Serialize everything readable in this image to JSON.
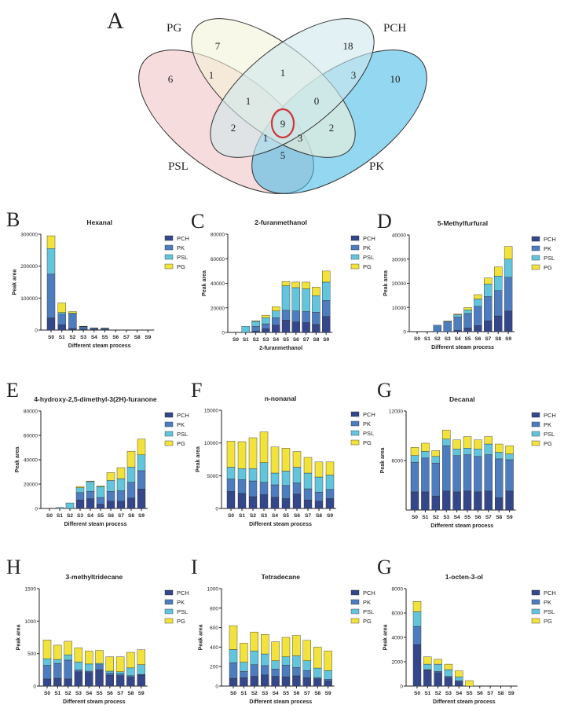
{
  "venn": {
    "panel_label": "A",
    "sets": [
      {
        "name": "PG",
        "color": "#f3f4d8"
      },
      {
        "name": "PCH",
        "color": "#cfe7ec"
      },
      {
        "name": "PSL",
        "color": "#f2c4c6"
      },
      {
        "name": "PK",
        "color": "#4dbde8"
      }
    ],
    "regions": [
      {
        "sets": "PG only",
        "count": "7"
      },
      {
        "sets": "PCH only",
        "count": "18"
      },
      {
        "sets": "PSL only",
        "count": "6"
      },
      {
        "sets": "PG+PSL",
        "count": "1"
      },
      {
        "sets": "PG+PCH",
        "count": "1"
      },
      {
        "sets": "PCH+PK",
        "count": "3"
      },
      {
        "sets": "PK only",
        "count": "10"
      },
      {
        "sets": "PG+PCH+PSL",
        "count": "1"
      },
      {
        "sets": "PG+PCH+PK",
        "count": "0"
      },
      {
        "sets": "PCH+PSL",
        "count": "2"
      },
      {
        "sets": "PG+PCH+PSL+PK",
        "count": "9"
      },
      {
        "sets": "PG+PK",
        "count": "2"
      },
      {
        "sets": "PG+PSL+PK",
        "count": "1"
      },
      {
        "sets": "PCH+PSL+PK",
        "count": "3"
      },
      {
        "sets": "PSL+PK",
        "count": "5"
      }
    ],
    "highlight_color": "#d0343a"
  },
  "chart_data": [
    {
      "panel": "B",
      "type": "bar",
      "stacked": true,
      "title": "Hexanal",
      "xlabel": "Different steam process",
      "ylabel": "Peak area",
      "ylim": [
        0,
        300000
      ],
      "yticks": [
        0,
        100000,
        200000,
        300000
      ],
      "categories": [
        "S0",
        "S1",
        "S2",
        "S3",
        "S4",
        "S5",
        "S6",
        "S7",
        "S8",
        "S9"
      ],
      "series": [
        {
          "name": "PCH",
          "values": [
            38000,
            17000,
            5000,
            3000,
            2000,
            2000,
            0,
            0,
            0,
            0
          ]
        },
        {
          "name": "PK",
          "values": [
            137000,
            33000,
            45000,
            7000,
            4000,
            3500,
            0,
            0,
            0,
            0
          ]
        },
        {
          "name": "PSL",
          "values": [
            80000,
            5000,
            3000,
            1000,
            500,
            500,
            0,
            0,
            0,
            0
          ]
        },
        {
          "name": "PG",
          "values": [
            40000,
            30000,
            5000,
            1000,
            500,
            500,
            0,
            0,
            0,
            0
          ]
        }
      ]
    },
    {
      "panel": "C",
      "type": "bar",
      "stacked": true,
      "title": "2-furanmethanol",
      "xlabel": "2-furanmethanol",
      "ylabel": "Peak area",
      "ylim": [
        0,
        80000
      ],
      "yticks": [
        0,
        20000,
        40000,
        60000,
        80000
      ],
      "categories": [
        "S0",
        "S1",
        "S2",
        "S3",
        "S4",
        "S5",
        "S6",
        "S7",
        "S8",
        "S9"
      ],
      "series": [
        {
          "name": "PCH",
          "values": [
            0,
            0,
            1000,
            3000,
            6000,
            10000,
            8500,
            8000,
            6500,
            13000
          ]
        },
        {
          "name": "PK",
          "values": [
            0,
            0,
            4000,
            4000,
            6000,
            8000,
            9000,
            9000,
            10000,
            13000
          ]
        },
        {
          "name": "PSL",
          "values": [
            0,
            5000,
            4000,
            5000,
            5500,
            20000,
            19000,
            18500,
            13500,
            15000
          ]
        },
        {
          "name": "PG",
          "values": [
            0,
            0,
            500,
            2000,
            3500,
            3500,
            4500,
            5500,
            7000,
            9000
          ]
        }
      ]
    },
    {
      "panel": "D",
      "type": "bar",
      "stacked": true,
      "title": "5-Methylfurfural",
      "xlabel": "Different steam process",
      "ylabel": "Peak area",
      "ylim": [
        0,
        40000
      ],
      "yticks": [
        0,
        10000,
        20000,
        30000,
        40000
      ],
      "categories": [
        "S0",
        "S1",
        "S2",
        "S3",
        "S4",
        "S5",
        "S6",
        "S7",
        "S8",
        "S9"
      ],
      "series": [
        {
          "name": "PCH",
          "values": [
            0,
            0,
            0,
            0,
            500,
            1500,
            2500,
            4500,
            6500,
            8500
          ]
        },
        {
          "name": "PK",
          "values": [
            0,
            0,
            2700,
            4200,
            5500,
            6000,
            8000,
            10000,
            10500,
            14000
          ]
        },
        {
          "name": "PSL",
          "values": [
            0,
            0,
            0,
            0,
            1000,
            1500,
            3000,
            5200,
            6000,
            7500
          ]
        },
        {
          "name": "PG",
          "values": [
            0,
            0,
            0,
            200,
            300,
            1000,
            1800,
            2500,
            3800,
            5200
          ]
        }
      ]
    },
    {
      "panel": "E",
      "type": "bar",
      "stacked": true,
      "title": "4-hydroxy-2,5-dimethyl-3(2H)-furanone",
      "xlabel": "Different steam process",
      "ylabel": "Peak area",
      "ylim": [
        0,
        80000
      ],
      "yticks": [
        0,
        20000,
        40000,
        60000,
        80000
      ],
      "categories": [
        "S0",
        "S1",
        "S2",
        "S3",
        "S4",
        "S5",
        "S6",
        "S7",
        "S8",
        "S9"
      ],
      "series": [
        {
          "name": "PCH",
          "values": [
            0,
            0,
            0,
            7000,
            8000,
            3500,
            6000,
            6000,
            8500,
            16000
          ]
        },
        {
          "name": "PK",
          "values": [
            0,
            0,
            0,
            6000,
            6000,
            5500,
            8000,
            8500,
            13000,
            15000
          ]
        },
        {
          "name": "PSL",
          "values": [
            0,
            800,
            4500,
            4000,
            8000,
            9000,
            9000,
            10000,
            12500,
            13000
          ]
        },
        {
          "name": "PG",
          "values": [
            0,
            0,
            0,
            1000,
            500,
            500,
            6500,
            9000,
            13000,
            13000
          ]
        }
      ]
    },
    {
      "panel": "F",
      "type": "bar",
      "stacked": true,
      "title": "n-nonanal",
      "xlabel": "Different steam process",
      "ylabel": "Peak area",
      "ylim": [
        0,
        15000
      ],
      "yticks": [
        0,
        5000,
        10000,
        15000
      ],
      "categories": [
        "S0",
        "S1",
        "S2",
        "S3",
        "S4",
        "S5",
        "S6",
        "S7",
        "S8",
        "S9"
      ],
      "series": [
        {
          "name": "PCH",
          "values": [
            2600,
            2300,
            1800,
            2100,
            1700,
            1500,
            2200,
            1300,
            1100,
            1500
          ]
        },
        {
          "name": "PK",
          "values": [
            1900,
            2100,
            2400,
            1900,
            1900,
            2000,
            1700,
            1700,
            1400,
            1400
          ]
        },
        {
          "name": "PSL",
          "values": [
            1800,
            1700,
            1900,
            3000,
            1800,
            2200,
            2400,
            2400,
            2300,
            2200
          ]
        },
        {
          "name": "PG",
          "values": [
            4000,
            4100,
            4700,
            4700,
            4000,
            3500,
            2400,
            2400,
            2300,
            2000
          ]
        }
      ]
    },
    {
      "panel": "G",
      "type": "bar",
      "stacked": true,
      "title": "Decanal",
      "xlabel": "Different steam process",
      "ylabel": "Peak area",
      "ylim": [
        0,
        12000
      ],
      "yticks": [
        6000,
        12000
      ],
      "categories": [
        "S0",
        "S1",
        "S2",
        "S3",
        "S4",
        "S5",
        "S6",
        "S7",
        "S8",
        "S9"
      ],
      "series": [
        {
          "name": "PCH",
          "values": [
            2200,
            2200,
            1700,
            2300,
            2200,
            2300,
            2200,
            2300,
            1500,
            2300
          ]
        },
        {
          "name": "PK",
          "values": [
            3600,
            4100,
            4000,
            5500,
            4400,
            4400,
            4300,
            4400,
            4700,
            3800
          ]
        },
        {
          "name": "PSL",
          "values": [
            800,
            800,
            800,
            800,
            800,
            800,
            900,
            1300,
            800,
            700
          ]
        },
        {
          "name": "PG",
          "values": [
            1000,
            1000,
            700,
            1100,
            1100,
            1400,
            1100,
            900,
            1000,
            1000
          ]
        }
      ]
    },
    {
      "panel": "H",
      "type": "bar",
      "stacked": true,
      "title": "3-methyltridecane",
      "xlabel": "Different steam process",
      "ylabel": "Peak area",
      "ylim": [
        0,
        1500
      ],
      "yticks": [
        0,
        500,
        1000,
        1500
      ],
      "categories": [
        "S0",
        "S1",
        "S2",
        "S3",
        "S4",
        "S5",
        "S6",
        "S7",
        "S8",
        "S9"
      ],
      "series": [
        {
          "name": "PCH",
          "values": [
            110,
            120,
            110,
            220,
            210,
            250,
            170,
            160,
            140,
            170
          ]
        },
        {
          "name": "PK",
          "values": [
            210,
            230,
            290,
            30,
            20,
            80,
            30,
            30,
            20,
            10
          ]
        },
        {
          "name": "PSL",
          "values": [
            100,
            60,
            80,
            120,
            110,
            20,
            30,
            30,
            120,
            150
          ]
        },
        {
          "name": "PG",
          "values": [
            290,
            220,
            210,
            220,
            200,
            200,
            220,
            230,
            240,
            230
          ]
        }
      ]
    },
    {
      "panel": "I",
      "type": "bar",
      "stacked": true,
      "title": "Tetradecane",
      "xlabel": "Different steam process",
      "ylabel": "Peak area",
      "ylim": [
        0,
        1000
      ],
      "yticks": [
        0,
        200,
        400,
        600,
        800,
        1000
      ],
      "categories": [
        "S0",
        "S1",
        "S2",
        "S3",
        "S4",
        "S5",
        "S6",
        "S7",
        "S8",
        "S9"
      ],
      "series": [
        {
          "name": "PCH",
          "values": [
            80,
            85,
            100,
            115,
            100,
            95,
            105,
            85,
            75,
            55
          ]
        },
        {
          "name": "PK",
          "values": [
            160,
            65,
            120,
            95,
            75,
            120,
            85,
            75,
            10,
            15
          ]
        },
        {
          "name": "PSL",
          "values": [
            135,
            95,
            140,
            120,
            85,
            85,
            120,
            100,
            100,
            90
          ]
        },
        {
          "name": "PG",
          "values": [
            245,
            195,
            195,
            200,
            195,
            200,
            210,
            210,
            215,
            200
          ]
        }
      ]
    },
    {
      "panel": "G",
      "type": "bar",
      "stacked": true,
      "title": "1-octen-3-ol",
      "xlabel": "Different steam process",
      "ylabel": "Peak area",
      "ylim": [
        0,
        8000
      ],
      "yticks": [
        0,
        2000,
        4000,
        6000,
        8000
      ],
      "categories": [
        "S0",
        "S1",
        "S2",
        "S3",
        "S4",
        "S5",
        "S6",
        "S7",
        "S8",
        "S9"
      ],
      "series": [
        {
          "name": "PCH",
          "values": [
            3400,
            1300,
            1100,
            700,
            350,
            0,
            0,
            0,
            0,
            0
          ]
        },
        {
          "name": "PK",
          "values": [
            1500,
            50,
            100,
            100,
            100,
            0,
            0,
            0,
            0,
            0
          ]
        },
        {
          "name": "PSL",
          "values": [
            1200,
            450,
            600,
            550,
            300,
            0,
            0,
            0,
            0,
            0
          ]
        },
        {
          "name": "PG",
          "values": [
            850,
            600,
            400,
            450,
            500,
            450,
            0,
            0,
            0,
            0
          ]
        }
      ]
    }
  ],
  "series_colors": {
    "PCH": "#34478a",
    "PK": "#4d7dbf",
    "PSL": "#62c5dc",
    "PG": "#f2e33c"
  }
}
